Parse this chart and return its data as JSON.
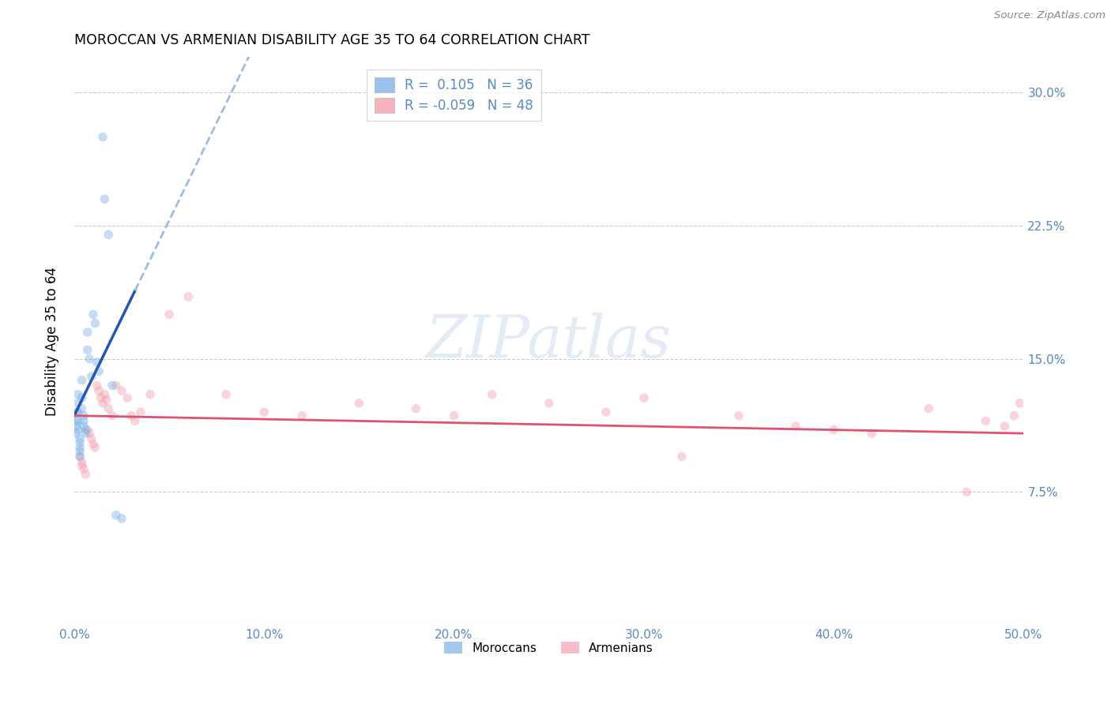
{
  "title": "MOROCCAN VS ARMENIAN DISABILITY AGE 35 TO 64 CORRELATION CHART",
  "source": "Source: ZipAtlas.com",
  "ylabel": "Disability Age 35 to 64",
  "xlim": [
    0.0,
    0.5
  ],
  "ylim": [
    0.0,
    0.32
  ],
  "xticks": [
    0.0,
    0.1,
    0.2,
    0.3,
    0.4,
    0.5
  ],
  "xtick_labels": [
    "0.0%",
    "10.0%",
    "20.0%",
    "30.0%",
    "40.0%",
    "50.0%"
  ],
  "yticks": [
    0.0,
    0.075,
    0.15,
    0.225,
    0.3
  ],
  "ytick_labels": [
    "",
    "7.5%",
    "15.0%",
    "22.5%",
    "30.0%"
  ],
  "grid_color": "#cccccc",
  "background_color": "#ffffff",
  "moroccan_color": "#7fb3e8",
  "armenian_color": "#f4a0b0",
  "moroccan_label": "Moroccans",
  "armenian_label": "Armenians",
  "moroccan_R": 0.105,
  "moroccan_N": 36,
  "armenian_R": -0.059,
  "armenian_N": 48,
  "moroccan_line_color": "#2255bb",
  "armenian_line_color": "#e05070",
  "dashed_line_color": "#99bbee",
  "moroccans_x": [
    0.001,
    0.001,
    0.001,
    0.001,
    0.002,
    0.002,
    0.002,
    0.002,
    0.002,
    0.003,
    0.003,
    0.003,
    0.003,
    0.003,
    0.004,
    0.004,
    0.004,
    0.005,
    0.005,
    0.005,
    0.006,
    0.006,
    0.007,
    0.007,
    0.008,
    0.009,
    0.01,
    0.011,
    0.012,
    0.013,
    0.015,
    0.016,
    0.018,
    0.02,
    0.022,
    0.025
  ],
  "moroccans_y": [
    0.12,
    0.115,
    0.112,
    0.108,
    0.13,
    0.125,
    0.12,
    0.115,
    0.11,
    0.105,
    0.103,
    0.1,
    0.098,
    0.095,
    0.138,
    0.128,
    0.122,
    0.118,
    0.115,
    0.112,
    0.11,
    0.108,
    0.165,
    0.155,
    0.15,
    0.14,
    0.175,
    0.17,
    0.148,
    0.143,
    0.275,
    0.24,
    0.22,
    0.135,
    0.062,
    0.06
  ],
  "armenians_x": [
    0.003,
    0.004,
    0.004,
    0.005,
    0.006,
    0.007,
    0.008,
    0.009,
    0.01,
    0.011,
    0.012,
    0.013,
    0.014,
    0.015,
    0.016,
    0.017,
    0.018,
    0.02,
    0.022,
    0.025,
    0.028,
    0.03,
    0.032,
    0.035,
    0.04,
    0.05,
    0.06,
    0.08,
    0.1,
    0.12,
    0.15,
    0.18,
    0.2,
    0.22,
    0.25,
    0.28,
    0.3,
    0.32,
    0.35,
    0.38,
    0.4,
    0.42,
    0.45,
    0.47,
    0.48,
    0.49,
    0.495,
    0.498
  ],
  "armenians_y": [
    0.095,
    0.092,
    0.09,
    0.088,
    0.085,
    0.11,
    0.108,
    0.105,
    0.102,
    0.1,
    0.135,
    0.132,
    0.128,
    0.125,
    0.13,
    0.127,
    0.122,
    0.118,
    0.135,
    0.132,
    0.128,
    0.118,
    0.115,
    0.12,
    0.13,
    0.175,
    0.185,
    0.13,
    0.12,
    0.118,
    0.125,
    0.122,
    0.118,
    0.13,
    0.125,
    0.12,
    0.128,
    0.095,
    0.118,
    0.112,
    0.11,
    0.108,
    0.122,
    0.075,
    0.115,
    0.112,
    0.118,
    0.125
  ],
  "watermark": "ZIPatlas",
  "marker_size": 70,
  "marker_alpha": 0.45,
  "axis_color": "#5588cc",
  "mor_line_x_solid_end": 0.032,
  "mor_line_intercept": 0.118,
  "mor_line_slope": 2.2,
  "arm_line_intercept": 0.118,
  "arm_line_slope": -0.02
}
